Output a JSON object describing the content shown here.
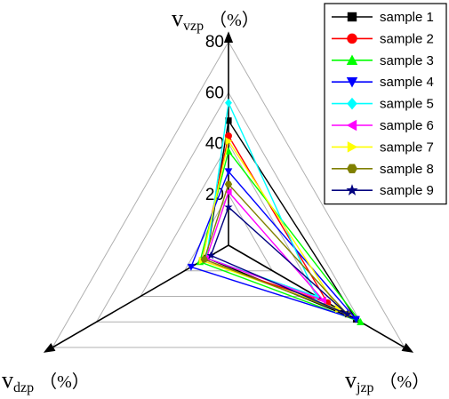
{
  "chart_data": {
    "type": "radar",
    "axes": [
      {
        "name": "v",
        "sub": "vzp",
        "unit": "（%）"
      },
      {
        "name": "v",
        "sub": "jzp",
        "unit": "（%）"
      },
      {
        "name": "v",
        "sub": "dzp",
        "unit": "（%）"
      }
    ],
    "ticks": [
      "20",
      "40",
      "60",
      "80"
    ],
    "range": [
      0,
      80
    ],
    "grid": true,
    "legend_position": "top-right",
    "series": [
      {
        "name": "sample 1",
        "color": "#000000",
        "marker": "square",
        "values": [
          49,
          58,
          10
        ]
      },
      {
        "name": "sample 2",
        "color": "#ff0000",
        "marker": "circle",
        "values": [
          43,
          45,
          12
        ]
      },
      {
        "name": "sample 3",
        "color": "#00ff00",
        "marker": "triangle-up",
        "values": [
          37,
          60,
          13
        ]
      },
      {
        "name": "sample 4",
        "color": "#0000ff",
        "marker": "triangle-down",
        "values": [
          29,
          58,
          17
        ]
      },
      {
        "name": "sample 5",
        "color": "#00ffff",
        "marker": "diamond",
        "values": [
          56,
          40,
          10
        ]
      },
      {
        "name": "sample 6",
        "color": "#ff00ff",
        "marker": "triangle-left",
        "values": [
          21,
          43,
          10
        ]
      },
      {
        "name": "sample 7",
        "color": "#ffff00",
        "marker": "triangle-right",
        "values": [
          41,
          50,
          12
        ]
      },
      {
        "name": "sample 8",
        "color": "#808000",
        "marker": "hexagon",
        "values": [
          24,
          54,
          11
        ]
      },
      {
        "name": "sample 9",
        "color": "#000080",
        "marker": "star",
        "values": [
          15,
          54,
          8
        ]
      }
    ]
  }
}
